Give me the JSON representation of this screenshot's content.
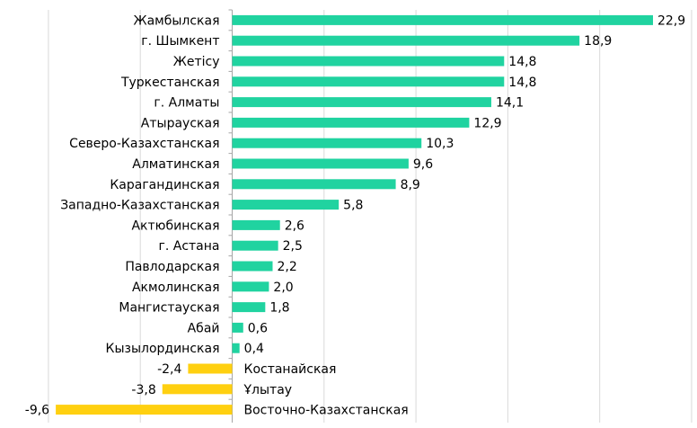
{
  "chart_data": {
    "type": "bar",
    "orientation": "horizontal",
    "categories": [
      "Жамбылская",
      "г. Шымкент",
      "Жетісу",
      "Туркестанская",
      "г. Алматы",
      "Атырауская",
      "Северо-Казахстанская",
      "Алматинская",
      "Карагандинская",
      "Западно-Казахстанская",
      "Актюбинская",
      "г. Астана",
      "Павлодарская",
      "Акмолинская",
      "Мангистауская",
      "Абай",
      "Кызылординская",
      "Костанайская",
      "Ұлытау",
      "Восточно-Казахстанская"
    ],
    "values": [
      22.9,
      18.9,
      14.8,
      14.8,
      14.1,
      12.9,
      10.3,
      9.6,
      8.9,
      5.8,
      2.6,
      2.5,
      2.2,
      2.0,
      1.8,
      0.6,
      0.4,
      -2.4,
      -3.8,
      -9.6
    ],
    "value_labels": [
      "22,9",
      "18,9",
      "14,8",
      "14,8",
      "14,1",
      "12,9",
      "10,3",
      "9,6",
      "8,9",
      "5,8",
      "2,6",
      "2,5",
      "2,2",
      "2,0",
      "1,8",
      "0,6",
      "0,4",
      "-2,4",
      "-3,8",
      "-9,6"
    ],
    "xlim": [
      -10,
      25
    ],
    "grid": "vertical",
    "legend": "none",
    "colors": {
      "positive": "#20D3A0",
      "negative": "#FFD010",
      "grid": "#D9D9D9",
      "axis": "#A6A6A6"
    }
  }
}
